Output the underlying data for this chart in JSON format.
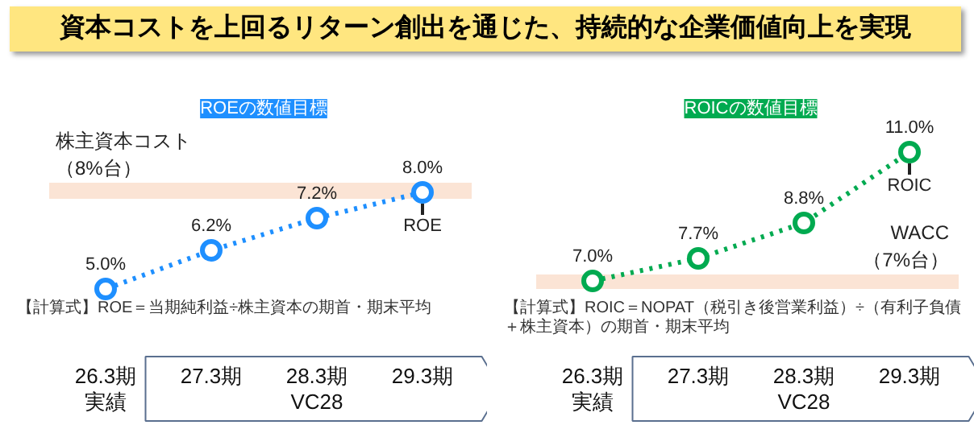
{
  "chart_data": [
    {
      "type": "line",
      "title": "資本コストを上回るリターン創出を通じた、持続的な企業価値向上を実現",
      "subtitle": "ROEの数値目標",
      "categories": [
        "26.3期実績",
        "27.3期",
        "28.3期",
        "29.3期"
      ],
      "series": [
        {
          "name": "ROE",
          "color": "#1e8fff",
          "values": [
            5.0,
            6.2,
            7.2,
            8.0
          ],
          "value_labels": [
            "5.0%",
            "6.2%",
            "7.2%",
            "8.0%"
          ]
        }
      ],
      "bands": [
        {
          "axis": "y",
          "from": 7.8,
          "to": 8.3,
          "label": "株主資本コスト（8%台）",
          "color": "#fbe4d5"
        }
      ],
      "marker": "circle",
      "line_style": "dotted",
      "annotations": [
        "【計算式】ROE＝当期純利益÷株主資本の期首・期末平均",
        "VC28"
      ]
    },
    {
      "type": "line",
      "subtitle": "ROICの数値目標",
      "categories": [
        "26.3期実績",
        "27.3期",
        "28.3期",
        "29.3期"
      ],
      "series": [
        {
          "name": "ROIC",
          "color": "#00aa50",
          "values": [
            7.0,
            7.7,
            8.8,
            11.0
          ],
          "value_labels": [
            "7.0%",
            "7.7%",
            "8.8%",
            "11.0%"
          ]
        }
      ],
      "bands": [
        {
          "axis": "y",
          "from": 6.75,
          "to": 7.2,
          "label": "WACC（7%台）",
          "color": "#fbe4d5"
        }
      ],
      "marker": "circle",
      "line_style": "dotted",
      "annotations": [
        "【計算式】ROIC＝NOPAT（税引き後営業利益）÷（有利子負債＋株主資本）の期首・期末平均",
        "VC28"
      ]
    }
  ]
}
